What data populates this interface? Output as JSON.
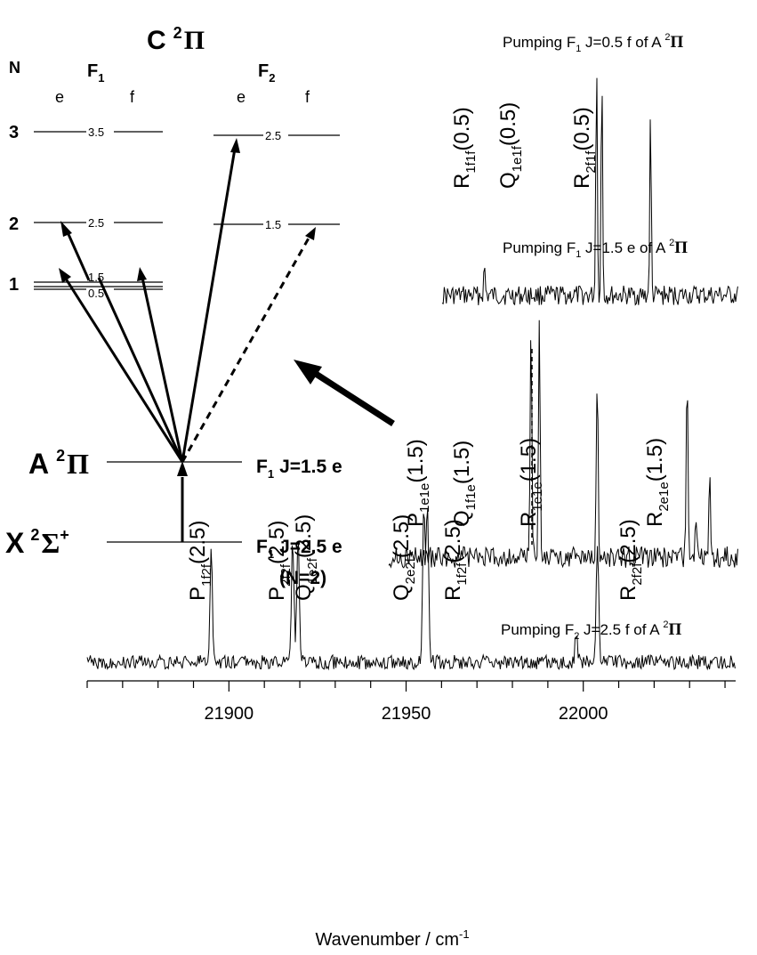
{
  "chart_data": {
    "type": "line",
    "xlabel_text": "Wavenumber / cm",
    "xlabel_exp": "-1",
    "xticks": [
      21900,
      21950,
      22000
    ],
    "xlim": [
      21860,
      22043
    ],
    "diagram": {
      "upper_state": {
        "letter": "C",
        "sup": "2",
        "sym": "Π"
      },
      "mid_state": {
        "letter": "A",
        "sup": "2",
        "sym": "Π"
      },
      "low_state": {
        "letter": "X",
        "sup": "2",
        "sym": "Σ",
        "sup2": "+"
      },
      "f1": "F",
      "f1_sub": "1",
      "f2": "F",
      "f2_sub": "2",
      "N_label": "N",
      "e": "e",
      "f": "f",
      "N_values": [
        "3",
        "2",
        "1"
      ],
      "J_labels": [
        "3.5",
        "2.5",
        "1.5",
        "0.5",
        "2.5",
        "1.5"
      ],
      "a_label": "J=1.5 e",
      "x_label": "J=2.5 e",
      "x_note": "(N=2)"
    },
    "panels": [
      {
        "title_prefix": "Pumping F",
        "title_sub": "1",
        "title_mid": " J=0.5 f of A ",
        "title_sup": "2",
        "title_sym": "Π",
        "xlim": [
          21900,
          22040
        ],
        "peaks": [
          {
            "x": 21973.0,
            "h": 1.0
          },
          {
            "x": 21975.5,
            "h": 0.93
          },
          {
            "x": 21998.5,
            "h": 0.74
          },
          {
            "x": 21920.0,
            "h": 0.12
          }
        ],
        "labels": [
          {
            "L": "R",
            "sub": "1f1f",
            "arg": "(0.5)"
          },
          {
            "L": "Q",
            "sub": "1e1f",
            "arg": "(0.5)"
          },
          {
            "L": "R",
            "sub": "2f1f",
            "arg": "(0.5)"
          }
        ]
      },
      {
        "title_prefix": "Pumping F",
        "title_sub": "1",
        "title_mid": " J=1.5 e of A ",
        "title_sup": "2",
        "title_sym": "Π",
        "xlim": [
          21900,
          22040
        ],
        "peaks": [
          {
            "x": 21957.0,
            "h": 1.0
          },
          {
            "x": 21960.3,
            "h": 1.0
          },
          {
            "x": 21983.5,
            "h": 0.82
          },
          {
            "x": 22019.5,
            "h": 0.83
          },
          {
            "x": 22023.0,
            "h": 0.13
          },
          {
            "x": 22028.5,
            "h": 0.37
          }
        ],
        "labels": [
          {
            "L": "P",
            "sub": "1e1e",
            "arg": "(1.5)"
          },
          {
            "L": "Q",
            "sub": "1f1e",
            "arg": "(1.5)"
          },
          {
            "L": "R",
            "sub": "1e1e",
            "arg": "(1.5)"
          },
          {
            "L": "R",
            "sub": "2e1e",
            "arg": "(1.5)"
          }
        ]
      },
      {
        "title_prefix": "Pumping F",
        "title_sub": "2",
        "title_mid": " J=2.5 f of A ",
        "title_sup": "2",
        "title_sym": "Π",
        "xlim": [
          21860,
          22043
        ],
        "peaks": [
          {
            "x": 21895.0,
            "h": 0.74
          },
          {
            "x": 21918.0,
            "h": 0.82
          },
          {
            "x": 21919.5,
            "h": 0.85
          },
          {
            "x": 21955.0,
            "h": 1.05
          },
          {
            "x": 21956.0,
            "h": 1.05
          },
          {
            "x": 21998.0,
            "h": 0.17
          },
          {
            "x": 22004.0,
            "h": 0.76
          }
        ],
        "labels": [
          {
            "L": "P",
            "sub": "1f2f",
            "arg": "(2.5)"
          },
          {
            "L": "P",
            "sub": "2f2f",
            "arg": "(2.5)"
          },
          {
            "L": "Q",
            "sub": "1e2f",
            "arg": "(2.5)"
          },
          {
            "L": "Q",
            "sub": "2e2f",
            "arg": "(2.5)"
          },
          {
            "L": "R",
            "sub": "1f2f",
            "arg": "(2.5)"
          },
          {
            "L": "R",
            "sub": "2f2f",
            "arg": "(2.5)"
          }
        ]
      }
    ]
  }
}
